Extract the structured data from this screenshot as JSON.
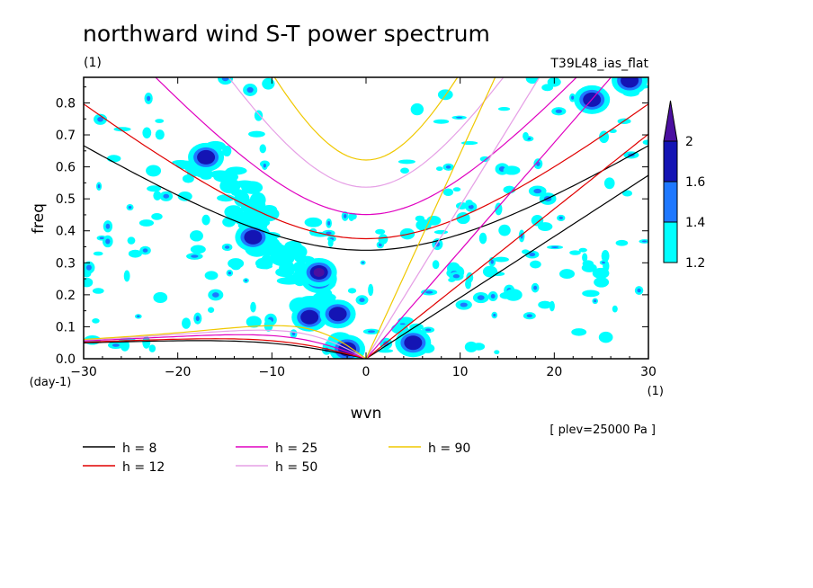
{
  "chart_data": {
    "type": "contour",
    "title": "northward wind S-T power spectrum",
    "title_units": "(1)",
    "model_label": "T39L48_ias_flat",
    "xlabel": "wvn",
    "x_units": "(1)",
    "ylabel": "freq",
    "y_units": "(day-1)",
    "xlim": [
      -30,
      30
    ],
    "ylim": [
      0,
      0.88
    ],
    "x_ticks": [
      -30,
      -20,
      -10,
      0,
      10,
      20,
      30
    ],
    "y_ticks": [
      0.0,
      0.1,
      0.2,
      0.3,
      0.4,
      0.5,
      0.6,
      0.7,
      0.8
    ],
    "x_tick_labels": [
      "−30",
      "−20",
      "−10",
      "0",
      "10",
      "20",
      "30"
    ],
    "y_tick_labels": [
      "0.0",
      "0.1",
      "0.2",
      "0.3",
      "0.4",
      "0.5",
      "0.6",
      "0.7",
      "0.8"
    ],
    "level_note": "[ plev=25000 Pa ]",
    "colorbar": {
      "levels": [
        1.2,
        1.4,
        1.6,
        2
      ],
      "level_labels": [
        "1.2",
        "1.4",
        "1.6",
        "2"
      ],
      "colors": [
        "#00ffff",
        "#1e78ff",
        "#1414b4",
        "#4b0fa0"
      ]
    },
    "dispersion_curves": [
      {
        "label": "h =  8",
        "h": 8,
        "color": "#000000"
      },
      {
        "label": "h = 12",
        "h": 12,
        "color": "#e00000"
      },
      {
        "label": "h = 25",
        "h": 25,
        "color": "#e000c0"
      },
      {
        "label": "h = 50",
        "h": 50,
        "color": "#e6a0e6"
      },
      {
        "label": "h = 90",
        "h": 90,
        "color": "#f0c800"
      }
    ],
    "spectral_blobs": [
      {
        "k": -5,
        "f": 0.25,
        "level": 1.6
      },
      {
        "k": -5,
        "f": 0.27,
        "level": 2
      },
      {
        "k": -6,
        "f": 0.13,
        "level": 1.6
      },
      {
        "k": -3,
        "f": 0.14,
        "level": 1.6
      },
      {
        "k": -12,
        "f": 0.38,
        "level": 1.6
      },
      {
        "k": -17,
        "f": 0.63,
        "level": 1.6
      },
      {
        "k": 5,
        "f": 0.05,
        "level": 1.6
      },
      {
        "k": -2,
        "f": 0.03,
        "level": 1.6
      },
      {
        "k": 28,
        "f": 0.87,
        "level": 1.6
      },
      {
        "k": 24,
        "f": 0.81,
        "level": 1.6
      }
    ]
  }
}
